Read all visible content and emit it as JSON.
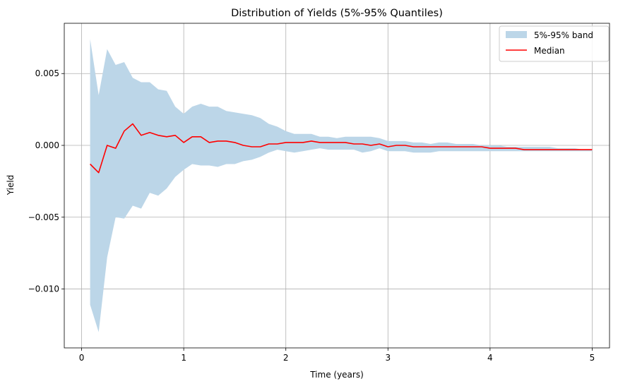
{
  "chart_data": {
    "type": "area",
    "title": "Distribution of Yields (5%-95% Quantiles)",
    "xlabel": "Time (years)",
    "ylabel": "Yield",
    "xlim": [
      -0.17,
      5.17
    ],
    "ylim": [
      -0.0141,
      0.0085
    ],
    "x_ticks": [
      0,
      1,
      2,
      3,
      4,
      5
    ],
    "x_tick_labels": [
      "0",
      "1",
      "2",
      "3",
      "4",
      "5"
    ],
    "y_ticks": [
      -0.01,
      -0.005,
      0.0,
      0.005
    ],
    "y_tick_labels": [
      "−0.010",
      "−0.005",
      "0.000",
      "0.005"
    ],
    "grid": true,
    "legend_position": "top-right",
    "colors": {
      "band": "#bcd6e8",
      "median": "#ff0000",
      "grid": "#b0b0b0"
    },
    "x": [
      0.083,
      0.167,
      0.25,
      0.333,
      0.417,
      0.5,
      0.583,
      0.667,
      0.75,
      0.833,
      0.917,
      1.0,
      1.083,
      1.167,
      1.25,
      1.333,
      1.417,
      1.5,
      1.583,
      1.667,
      1.75,
      1.833,
      1.917,
      2.0,
      2.083,
      2.167,
      2.25,
      2.333,
      2.417,
      2.5,
      2.583,
      2.667,
      2.75,
      2.833,
      2.917,
      3.0,
      3.083,
      3.167,
      3.25,
      3.333,
      3.417,
      3.5,
      3.583,
      3.667,
      3.75,
      3.833,
      3.917,
      4.0,
      4.083,
      4.167,
      4.25,
      4.333,
      4.417,
      4.5,
      4.583,
      4.667,
      4.75,
      4.833,
      4.917,
      5.0
    ],
    "series": [
      {
        "name": "5%-95% band",
        "upper": [
          0.0074,
          0.0035,
          0.0067,
          0.0056,
          0.0058,
          0.0047,
          0.0044,
          0.0044,
          0.0039,
          0.0038,
          0.0027,
          0.0022,
          0.0027,
          0.0029,
          0.0027,
          0.0027,
          0.0024,
          0.0023,
          0.0022,
          0.0021,
          0.0019,
          0.0015,
          0.0013,
          0.001,
          0.0008,
          0.0008,
          0.0008,
          0.0006,
          0.0006,
          0.0005,
          0.0006,
          0.0006,
          0.0006,
          0.0006,
          0.0005,
          0.0003,
          0.0003,
          0.0003,
          0.0002,
          0.0002,
          0.0001,
          0.0002,
          0.0002,
          0.0001,
          0.0001,
          0.0001,
          0.0,
          0.0,
          0.0,
          -0.0001,
          -0.0001,
          -0.0001,
          -0.0001,
          -0.0001,
          -0.0001,
          -0.0002,
          -0.0002,
          -0.0002,
          -0.0003,
          -0.0003
        ],
        "lower": [
          -0.0111,
          -0.013,
          -0.0078,
          -0.005,
          -0.0051,
          -0.0042,
          -0.0044,
          -0.0033,
          -0.0035,
          -0.003,
          -0.0022,
          -0.0017,
          -0.0013,
          -0.0014,
          -0.0014,
          -0.0015,
          -0.0013,
          -0.0013,
          -0.0011,
          -0.001,
          -0.0008,
          -0.0005,
          -0.0003,
          -0.0004,
          -0.0005,
          -0.0004,
          -0.0003,
          -0.0002,
          -0.0003,
          -0.0003,
          -0.0003,
          -0.0003,
          -0.0005,
          -0.0004,
          -0.0002,
          -0.0004,
          -0.0004,
          -0.0004,
          -0.0005,
          -0.0005,
          -0.0005,
          -0.0004,
          -0.0004,
          -0.0004,
          -0.0004,
          -0.0004,
          -0.0004,
          -0.0004,
          -0.0004,
          -0.0004,
          -0.0004,
          -0.0004,
          -0.0004,
          -0.0004,
          -0.0004,
          -0.0004,
          -0.0004,
          -0.0004,
          -0.0004,
          -0.0004
        ]
      },
      {
        "name": "Median",
        "values": [
          -0.0013,
          -0.0019,
          0.0,
          -0.0002,
          0.001,
          0.0015,
          0.0007,
          0.0009,
          0.0007,
          0.0006,
          0.0007,
          0.0002,
          0.0006,
          0.0006,
          0.0002,
          0.0003,
          0.0003,
          0.0002,
          0.0,
          -0.0001,
          -0.0001,
          0.0001,
          0.0001,
          0.0002,
          0.0002,
          0.0002,
          0.0003,
          0.0002,
          0.0002,
          0.0002,
          0.0002,
          0.0001,
          0.0001,
          0.0,
          0.0001,
          -0.0001,
          0.0,
          0.0,
          -0.0001,
          -0.0001,
          -0.0001,
          -0.0001,
          -0.0001,
          -0.0001,
          -0.0001,
          -0.0001,
          -0.0001,
          -0.0002,
          -0.0002,
          -0.0002,
          -0.0002,
          -0.0003,
          -0.0003,
          -0.0003,
          -0.0003,
          -0.0003,
          -0.0003,
          -0.0003,
          -0.0003,
          -0.0003
        ]
      }
    ]
  }
}
